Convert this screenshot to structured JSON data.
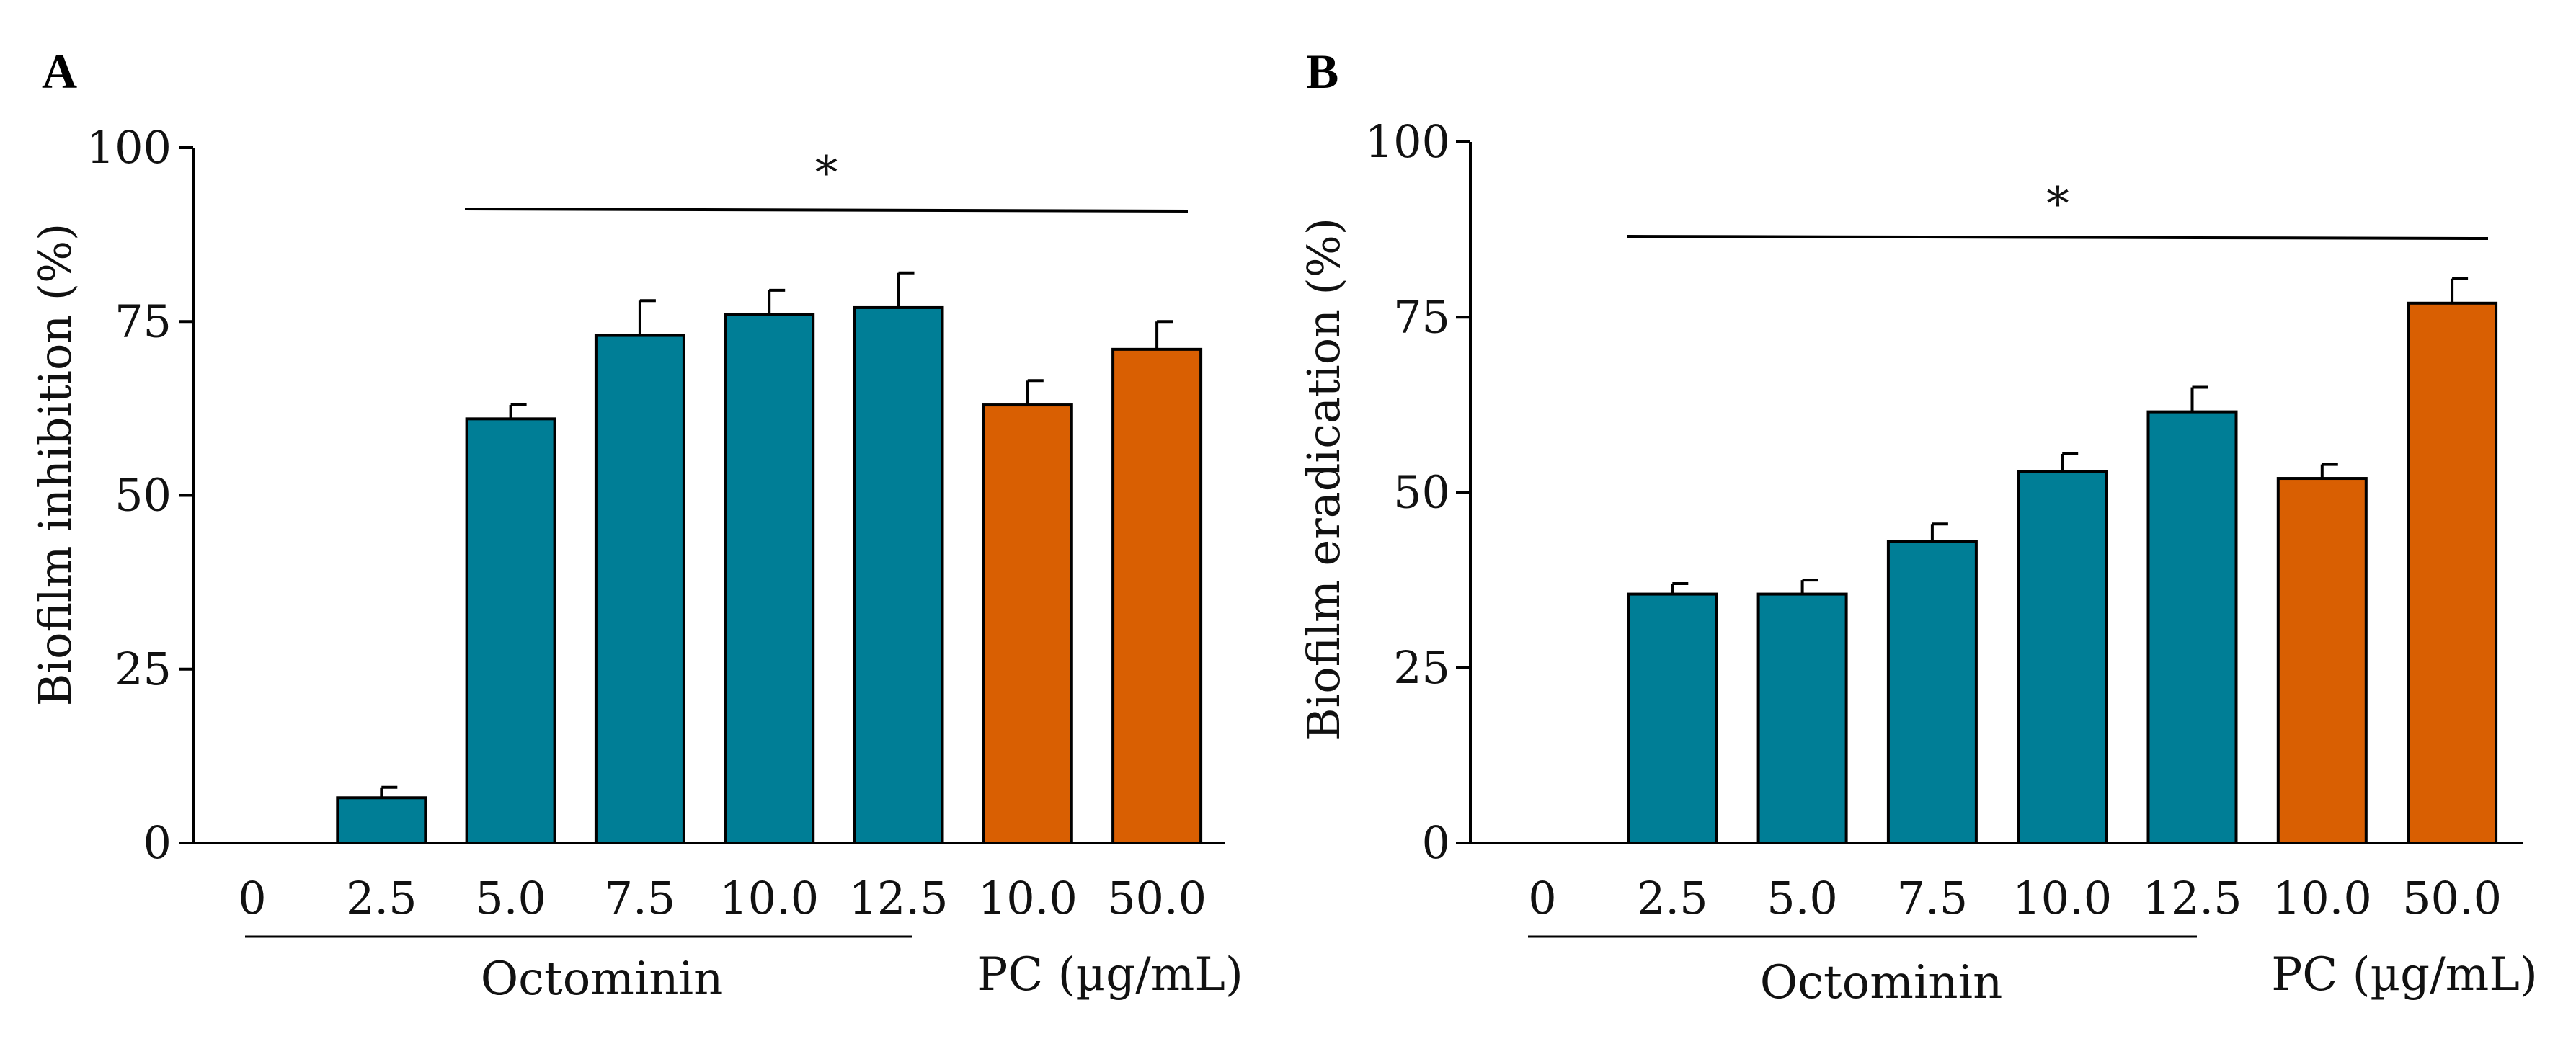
{
  "colors": {
    "octominin": "#007E96",
    "pc": "#D95F02",
    "axis": "#000000"
  },
  "chart_data": [
    {
      "panel": "A",
      "type": "bar",
      "ylabel": "Biofilm inhibition (%)",
      "ylim": [
        0,
        100
      ],
      "yticks": [
        "0",
        "25",
        "50",
        "75",
        "100"
      ],
      "ytick_values": [
        0,
        25,
        50,
        75,
        100
      ],
      "categories": [
        "0",
        "2.5",
        "5.0",
        "7.5",
        "10.0",
        "12.5",
        "10.0",
        "50.0"
      ],
      "groups": [
        {
          "label": "Octominin",
          "from": 0,
          "to": 5
        },
        {
          "label": "PC (µg/mL)",
          "from": 6,
          "to": 7
        }
      ],
      "series": [
        {
          "name": "Octominin",
          "values": [
            0,
            6.5,
            61,
            73,
            76,
            77,
            null,
            null
          ],
          "errors": [
            0,
            1.5,
            2,
            5,
            3.5,
            5,
            null,
            null
          ]
        },
        {
          "name": "PC",
          "values": [
            null,
            null,
            null,
            null,
            null,
            null,
            63,
            71
          ],
          "errors": [
            null,
            null,
            null,
            null,
            null,
            null,
            3.5,
            4
          ]
        }
      ],
      "significance": {
        "label": "*",
        "from": 2,
        "to": 7
      }
    },
    {
      "panel": "B",
      "type": "bar",
      "ylabel": "Biofilm eradication (%)",
      "ylim": [
        0,
        100
      ],
      "yticks": [
        "0",
        "25",
        "50",
        "75",
        "100"
      ],
      "ytick_values": [
        0,
        25,
        50,
        75,
        100
      ],
      "categories": [
        "0",
        "2.5",
        "5.0",
        "7.5",
        "10.0",
        "12.5",
        "10.0",
        "50.0"
      ],
      "groups": [
        {
          "label": "Octominin",
          "from": 0,
          "to": 5
        },
        {
          "label": "PC (µg/mL)",
          "from": 6,
          "to": 7
        }
      ],
      "series": [
        {
          "name": "Octominin",
          "values": [
            0,
            35.5,
            35.5,
            43,
            53,
            61.5,
            null,
            null
          ],
          "errors": [
            0,
            1.5,
            2,
            2.5,
            2.5,
            3.5,
            null,
            null
          ]
        },
        {
          "name": "PC",
          "values": [
            null,
            null,
            null,
            null,
            null,
            null,
            52,
            77
          ],
          "errors": [
            null,
            null,
            null,
            null,
            null,
            null,
            2,
            3.5
          ]
        }
      ],
      "significance": {
        "label": "*",
        "from": 1,
        "to": 7
      }
    }
  ]
}
